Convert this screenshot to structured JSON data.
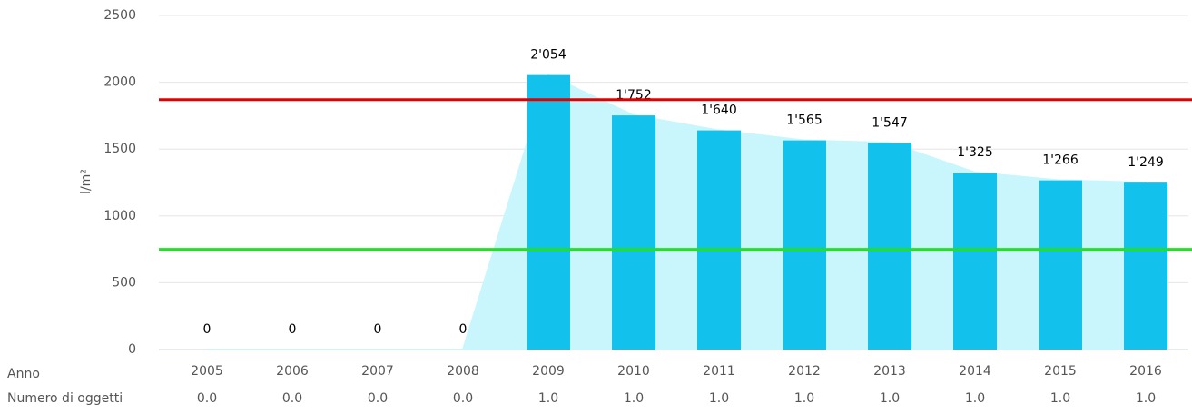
{
  "chart_data": {
    "type": "bar",
    "categories": [
      "2005",
      "2006",
      "2007",
      "2008",
      "2009",
      "2010",
      "2011",
      "2012",
      "2013",
      "2014",
      "2015",
      "2016"
    ],
    "values": [
      0,
      0,
      0,
      0,
      2054,
      1752,
      1640,
      1565,
      1547,
      1325,
      1266,
      1249
    ],
    "value_labels": [
      "0",
      "0",
      "0",
      "0",
      "2'054",
      "1'752",
      "1'640",
      "1'565",
      "1'547",
      "1'325",
      "1'266",
      "1'249"
    ],
    "color": "#12c2ec",
    "area_color": "#c9f6fc",
    "y_label": "l/m²",
    "x_label": "Anno",
    "ylim": [
      0,
      2500
    ],
    "yticks": [
      0,
      500,
      1000,
      1500,
      2000,
      2500
    ],
    "grid": true,
    "reference_lines": [
      {
        "value": 1870,
        "color": "#e00000"
      },
      {
        "value": 750,
        "color": "#22e022"
      }
    ],
    "table_row": {
      "label": "Numero di oggetti",
      "values": [
        0,
        0,
        0,
        0,
        1,
        1,
        1,
        1,
        1,
        1,
        1,
        1
      ],
      "value_labels": [
        "0.0",
        "0.0",
        "0.0",
        "0.0",
        "1.0",
        "1.0",
        "1.0",
        "1.0",
        "1.0",
        "1.0",
        "1.0",
        "1.0"
      ]
    }
  }
}
